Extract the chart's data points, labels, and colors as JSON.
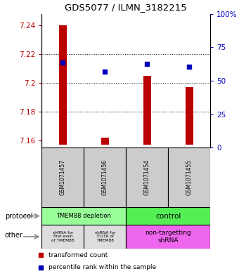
{
  "title": "GDS5077 / ILMN_3182215",
  "samples": [
    "GSM1071457",
    "GSM1071456",
    "GSM1071454",
    "GSM1071455"
  ],
  "red_values": [
    7.24,
    7.162,
    7.205,
    7.197
  ],
  "blue_values": [
    7.214,
    7.208,
    7.213,
    7.211
  ],
  "ylim_left": [
    7.155,
    7.248
  ],
  "ylim_right": [
    0,
    100
  ],
  "yticks_left": [
    7.16,
    7.18,
    7.2,
    7.22,
    7.24
  ],
  "yticks_right": [
    0,
    25,
    50,
    75,
    100
  ],
  "red_color": "#bb0000",
  "blue_color": "#0000bb",
  "bar_bottom": 7.157,
  "bar_width": 0.18,
  "legend_red": "transformed count",
  "legend_blue": "percentile rank within the sample",
  "protocol_left_color": "#99ff99",
  "protocol_right_color": "#55ee55",
  "other_left_color": "#dddddd",
  "other_right_color": "#ee66ee",
  "sample_box_color": "#cccccc",
  "grid_lines": [
    7.18,
    7.2,
    7.22
  ]
}
